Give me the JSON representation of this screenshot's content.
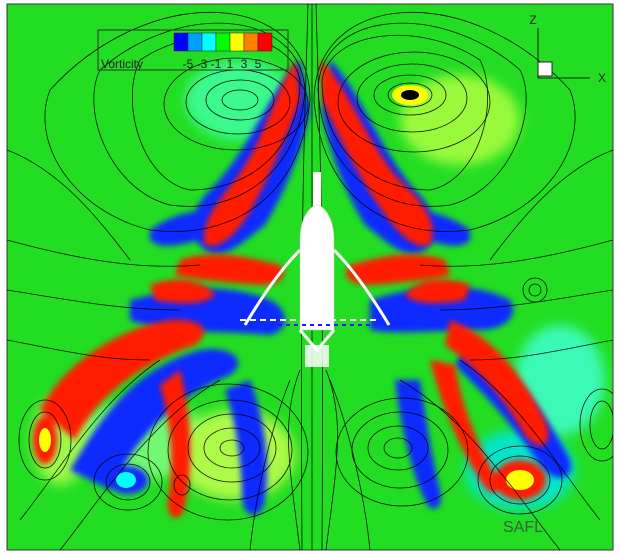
{
  "legend": {
    "title": "Vorticity",
    "ticks": [
      "-5",
      "-3",
      "-1",
      "1",
      "3",
      "5"
    ],
    "colors": [
      "#0000ff",
      "#00a0ff",
      "#00ffff",
      "#00ff00",
      "#ffff00",
      "#ff8000",
      "#ff0000"
    ]
  },
  "axes": {
    "z_label": "Z",
    "x_label": "X"
  },
  "watermark": "SAFL",
  "colors": {
    "background_field": "#22dd22",
    "positive_vortex": "#ff1a00",
    "negative_vortex": "#0a2bff",
    "streamline": "#000000",
    "structure": "#ffffff"
  }
}
